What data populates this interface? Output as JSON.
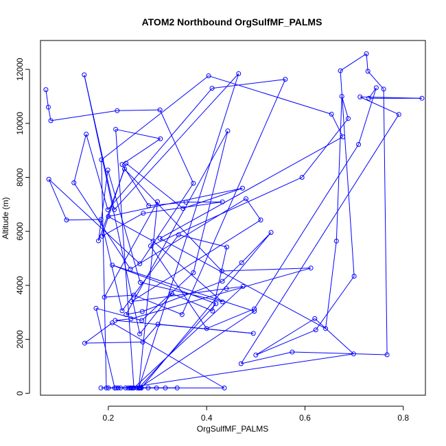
{
  "chart_data": {
    "type": "line",
    "title": "ATOM2 Northbound OrgSulfMF_PALMS",
    "xlabel": "OrgSulfMF_PALMS",
    "ylabel": "Altitude (m)",
    "xlim": [
      0.062,
      0.845
    ],
    "ylim": [
      -70,
      13070
    ],
    "xticks": [
      {
        "value": 0.2,
        "label": "0.2"
      },
      {
        "value": 0.4,
        "label": "0.4"
      },
      {
        "value": 0.6,
        "label": "0.6"
      },
      {
        "value": 0.8,
        "label": "0.8"
      }
    ],
    "yticks": [
      {
        "value": 0,
        "label": "0"
      },
      {
        "value": 2000,
        "label": "2000"
      },
      {
        "value": 4000,
        "label": "4000"
      },
      {
        "value": 6000,
        "label": "6000"
      },
      {
        "value": 8000,
        "label": "8000"
      },
      {
        "value": 10000,
        "label": "10000"
      },
      {
        "value": 12000,
        "label": "12000"
      }
    ],
    "grid": false,
    "legend": "none",
    "series_color": "#0000ff",
    "markers": "open-circle",
    "series": [
      {
        "x": [
          0.073,
          0.078,
          0.083,
          0.218,
          0.305,
          0.373,
          0.264,
          0.079,
          0.115,
          0.185,
          0.228,
          0.343,
          0.441,
          0.412,
          0.329,
          0.264,
          0.151,
          0.212,
          0.465,
          0.262,
          0.3,
          0.192,
          0.252,
          0.35,
          0.56,
          0.411,
          0.199,
          0.155,
          0.13,
          0.245,
          0.48,
          0.51,
          0.247,
          0.44,
          0.474,
          0.252,
          0.215,
          0.306,
          0.228,
          0.282,
          0.358,
          0.432,
          0.271,
          0.187,
          0.236,
          0.352,
          0.473,
          0.2,
          0.291,
          0.432,
          0.265,
          0.199,
          0.18,
          0.233,
          0.431,
          0.612,
          0.246,
          0.214,
          0.495,
          0.301,
          0.27,
          0.152,
          0.208,
          0.436,
          0.248,
          0.262,
          0.419,
          0.208,
          0.497,
          0.263,
          0.213,
          0.175,
          0.268,
          0.373,
          0.443,
          0.236,
          0.269,
          0.432,
          0.471,
          0.531,
          0.267,
          0.196,
          0.186,
          0.404,
          0.654,
          0.677,
          0.305,
          0.642,
          0.664,
          0.675,
          0.688,
          0.594,
          0.286,
          0.4,
          0.497,
          0.709,
          0.745,
          0.73,
          0.838,
          0.712,
          0.791,
          0.47,
          0.574,
          0.767,
          0.76,
          0.728,
          0.725,
          0.672,
          0.7,
          0.622,
          0.5,
          0.62,
          0.699,
          0.235,
          0.264,
          0.316,
          0.34,
          0.225,
          0.25,
          0.22,
          0.281,
          0.24,
          0.185,
          0.246,
          0.2,
          0.216,
          0.244,
          0.267,
          0.298,
          0.265,
          0.259
        ],
        "y": [
          11250,
          10600,
          10100,
          10470,
          10500,
          7780,
          4800,
          7930,
          6420,
          6440,
          3060,
          5870,
          5420,
          3050,
          3700,
          2200,
          11800,
          6800,
          11840,
          200,
          7100,
          3560,
          3640,
          2920,
          11630,
          11300,
          6800,
          9600,
          7800,
          4600,
          7210,
          6420,
          3400,
          3880,
          3960,
          200,
          9780,
          9430,
          8480,
          6950,
          7080,
          7090,
          6670,
          5820,
          8520,
          6850,
          7600,
          6550,
          5640,
          3390,
          4110,
          8270,
          5650,
          8310,
          4530,
          4640,
          2760,
          2700,
          2220,
          2560,
          1900,
          1860,
          2610,
          200,
          200,
          200,
          3320,
          4750,
          3040,
          200,
          200,
          3150,
          2700,
          4470,
          9720,
          2920,
          3030,
          4150,
          4840,
          5960,
          200,
          200,
          8650,
          11760,
          10340,
          9500,
          5740,
          2400,
          5640,
          11000,
          10180,
          8000,
          5460,
          2400,
          3130,
          9220,
          11320,
          10930,
          10930,
          10980,
          10330,
          1100,
          1530,
          1430,
          11270,
          11930,
          12580,
          11950,
          4340,
          2350,
          1420,
          2770,
          1460,
          200,
          200,
          200,
          200,
          200,
          200,
          200,
          200,
          200,
          200,
          200,
          200,
          200,
          200,
          200,
          200,
          200,
          200
        ]
      }
    ]
  }
}
